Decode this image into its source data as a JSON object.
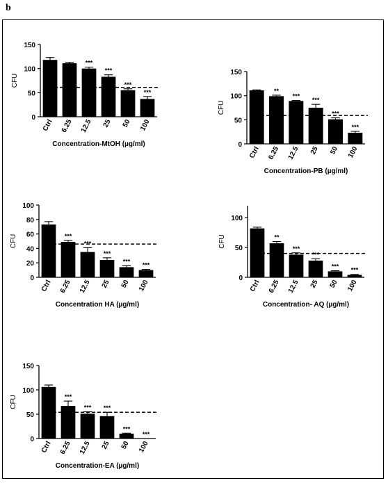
{
  "panel_label": "b",
  "chart_data": [
    {
      "type": "bar",
      "ylabel": "CFU",
      "xlabel": "Concentration-MtOH (µg/ml)",
      "categories": [
        "Ctrl",
        "6.25",
        "12.5",
        "25",
        "50",
        "100"
      ],
      "values": [
        118,
        111,
        100,
        83,
        55,
        37
      ],
      "errors": [
        5,
        2,
        3,
        4,
        3,
        5
      ],
      "significance": [
        "",
        "",
        "***",
        "***",
        "***",
        "***"
      ],
      "ylim": [
        0,
        150
      ],
      "yticks": [
        "0",
        "50",
        "100",
        "150"
      ],
      "threshold": 61
    },
    {
      "type": "bar",
      "ylabel": "CFU",
      "xlabel": "Concentration-PB (µg/ml)",
      "categories": [
        "Ctrl",
        "6.25",
        "12.5",
        "25",
        "50",
        "100"
      ],
      "values": [
        111,
        99,
        89,
        75,
        51,
        23
      ],
      "errors": [
        1,
        2,
        1,
        7,
        3,
        3
      ],
      "significance": [
        "",
        "**",
        "***",
        "***",
        "***",
        "***"
      ],
      "ylim": [
        0,
        150
      ],
      "yticks": [
        "0",
        "50",
        "100",
        "150"
      ],
      "threshold": 59
    },
    {
      "type": "bar",
      "ylabel": "CFU",
      "xlabel": "Concentration HA (µg/ml)",
      "categories": [
        "Ctrl",
        "6.25",
        "12.5",
        "25",
        "50",
        "100"
      ],
      "values": [
        73,
        49,
        35,
        24,
        14,
        10
      ],
      "errors": [
        4,
        2,
        6,
        3,
        2,
        1
      ],
      "significance": [
        "",
        "***",
        "***",
        "***",
        "***",
        "***"
      ],
      "ylim": [
        0,
        100
      ],
      "yticks": [
        "0",
        "20",
        "40",
        "60",
        "80",
        "100"
      ],
      "threshold": 46
    },
    {
      "type": "bar",
      "ylabel": "CFU",
      "xlabel": "Concentration- AQ (µg/ml)",
      "categories": [
        "Ctrl",
        "6.25",
        "12.5",
        "25",
        "50",
        "100"
      ],
      "values": [
        82,
        57,
        38,
        28,
        10,
        4
      ],
      "errors": [
        2,
        3,
        3,
        3,
        1,
        1
      ],
      "significance": [
        "",
        "**",
        "***",
        "***",
        "***",
        "***"
      ],
      "ylim": [
        0,
        120
      ],
      "yticks": [
        "0",
        "50",
        "100"
      ],
      "threshold": 40
    },
    {
      "type": "bar",
      "ylabel": "CFU",
      "xlabel": "Concentration-EA (µg/ml)",
      "categories": [
        "Ctrl",
        "6.25",
        "12.5",
        "25",
        "50",
        "100"
      ],
      "values": [
        106,
        67,
        51,
        46,
        10,
        0
      ],
      "errors": [
        4,
        10,
        4,
        8,
        1,
        0
      ],
      "significance": [
        "",
        "***",
        "***",
        "***",
        "***",
        "***"
      ],
      "ylim": [
        0,
        150
      ],
      "yticks": [
        "0",
        "50",
        "100",
        "150"
      ],
      "threshold": 54
    }
  ]
}
